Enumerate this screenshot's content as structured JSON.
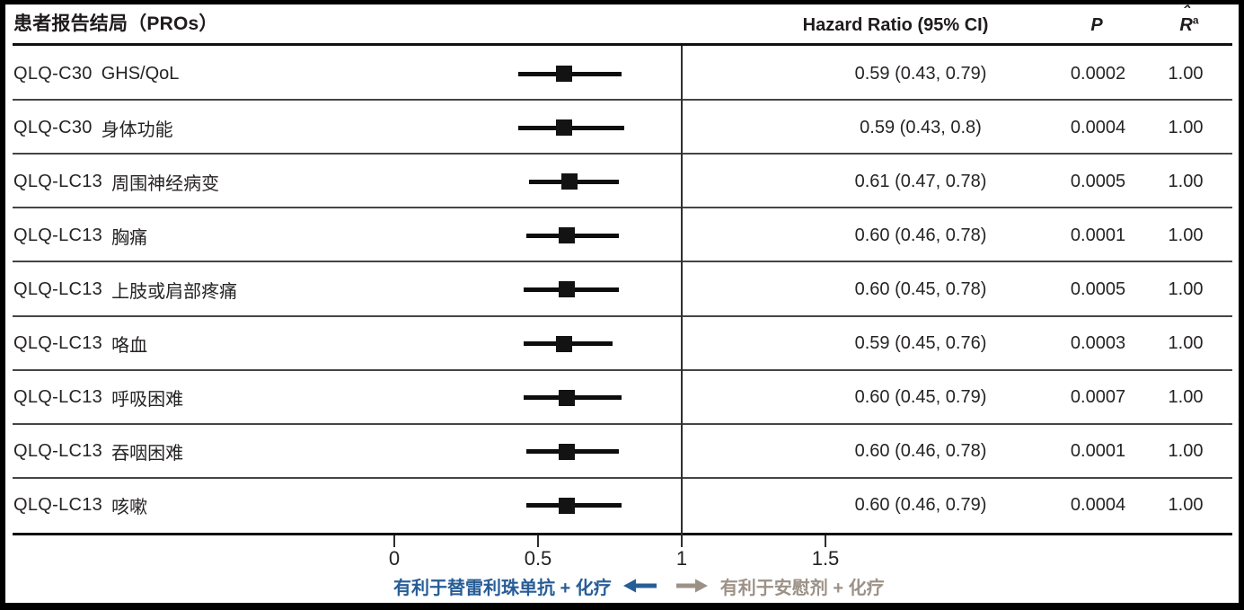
{
  "header": {
    "title": "患者报告结局（PROs）",
    "col_hr": "Hazard Ratio (95% CI)",
    "col_p": "P",
    "col_r_base": "R",
    "col_r_hat": "ˆ",
    "col_r_sup": "a"
  },
  "chart_data": {
    "type": "forest",
    "title": "患者报告结局（PROs）",
    "columns": [
      "Hazard Ratio (95% CI)",
      "P",
      "R̂a"
    ],
    "ref_line": 1,
    "x_ticks": [
      0,
      0.5,
      1,
      1.5
    ],
    "xlim": [
      0,
      1.77
    ],
    "grid": false,
    "rows": [
      {
        "scale": "QLQ-C30",
        "domain": "GHS/QoL",
        "hr": 0.59,
        "lo": 0.43,
        "hi": 0.79,
        "hr_text": "0.59 (0.43, 0.79)",
        "p": "0.0002",
        "rhat": "1.00"
      },
      {
        "scale": "QLQ-C30",
        "domain": "身体功能",
        "hr": 0.59,
        "lo": 0.43,
        "hi": 0.8,
        "hr_text": "0.59 (0.43, 0.8)",
        "p": "0.0004",
        "rhat": "1.00"
      },
      {
        "scale": "QLQ-LC13",
        "domain": "周围神经病变",
        "hr": 0.61,
        "lo": 0.47,
        "hi": 0.78,
        "hr_text": "0.61 (0.47, 0.78)",
        "p": "0.0005",
        "rhat": "1.00"
      },
      {
        "scale": "QLQ-LC13",
        "domain": "胸痛",
        "hr": 0.6,
        "lo": 0.46,
        "hi": 0.78,
        "hr_text": "0.60 (0.46, 0.78)",
        "p": "0.0001",
        "rhat": "1.00"
      },
      {
        "scale": "QLQ-LC13",
        "domain": "上肢或肩部疼痛",
        "hr": 0.6,
        "lo": 0.45,
        "hi": 0.78,
        "hr_text": "0.60 (0.45, 0.78)",
        "p": "0.0005",
        "rhat": "1.00"
      },
      {
        "scale": "QLQ-LC13",
        "domain": "咯血",
        "hr": 0.59,
        "lo": 0.45,
        "hi": 0.76,
        "hr_text": "0.59 (0.45, 0.76)",
        "p": "0.0003",
        "rhat": "1.00"
      },
      {
        "scale": "QLQ-LC13",
        "domain": "呼吸困难",
        "hr": 0.6,
        "lo": 0.45,
        "hi": 0.79,
        "hr_text": "0.60 (0.45, 0.79)",
        "p": "0.0007",
        "rhat": "1.00"
      },
      {
        "scale": "QLQ-LC13",
        "domain": "吞咽困难",
        "hr": 0.6,
        "lo": 0.46,
        "hi": 0.78,
        "hr_text": "0.60 (0.46, 0.78)",
        "p": "0.0001",
        "rhat": "1.00"
      },
      {
        "scale": "QLQ-LC13",
        "domain": "咳嗽",
        "hr": 0.6,
        "lo": 0.46,
        "hi": 0.79,
        "hr_text": "0.60 (0.46, 0.79)",
        "p": "0.0004",
        "rhat": "1.00"
      }
    ],
    "legend_position": "bottom",
    "favors_left": "有利于替雷利珠单抗 + 化疗",
    "favors_right": "有利于安慰剂 + 化疗"
  },
  "axis": {
    "tick_labels": [
      "0",
      "0.5",
      "1",
      "1.5"
    ]
  },
  "footer": {
    "left_label": "有利于替雷利珠单抗 + 化疗",
    "right_label": "有利于安慰剂 + 化疗"
  },
  "colors": {
    "accent_blue": "#275d96",
    "muted_gray": "#9c9187",
    "text": "#262324",
    "marker": "#131313"
  }
}
